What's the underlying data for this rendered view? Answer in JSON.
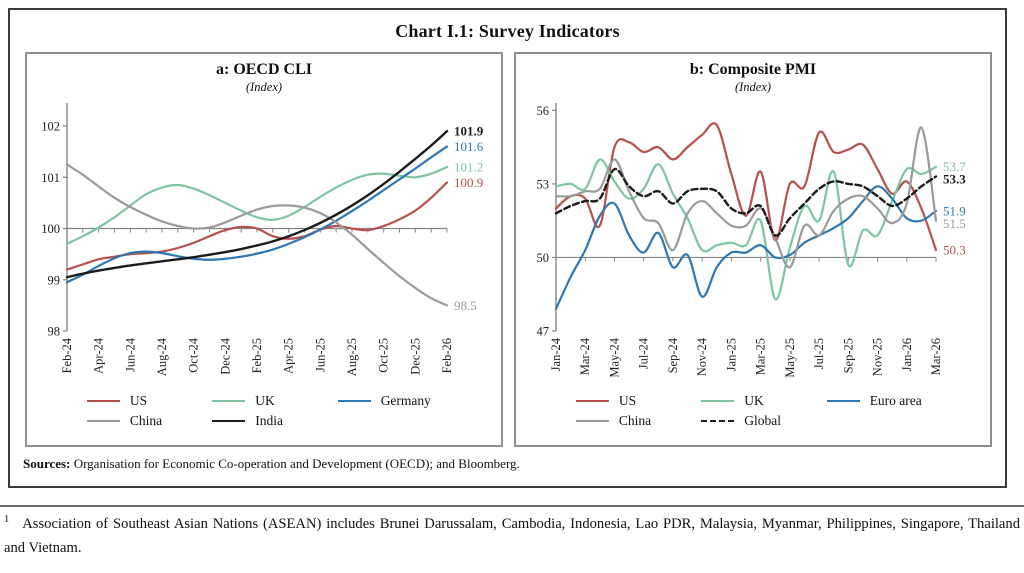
{
  "document": {
    "title": "Chart I.1: Survey Indicators",
    "sources": {
      "label": "Sources:",
      "text": "Organisation for Economic Co-operation and Development (OECD); and Bloomberg."
    },
    "footnote": {
      "marker": "1",
      "text": "Association of Southeast Asian Nations (ASEAN) includes Brunei Darussalam, Cambodia, Indonesia, Lao PDR, Malaysia, Myanmar, Philippines, Singapore, Thailand and Vietnam."
    }
  },
  "style": {
    "axis_color": "#858585",
    "tick_text_color": "#222222"
  },
  "chart_data": [
    {
      "id": "oecd-cli",
      "type": "line",
      "title": "a: OECD CLI",
      "subtitle": "(Index)",
      "legend_position": "bottom",
      "grid": false,
      "x_label_every": 2,
      "baseline": 100,
      "baseline_tick_every": 1,
      "ylim": [
        98,
        102.45
      ],
      "yticks": [
        98,
        99,
        100,
        101,
        102
      ],
      "x": [
        "Feb-24",
        "Mar-24",
        "Apr-24",
        "May-24",
        "Jun-24",
        "Jul-24",
        "Aug-24",
        "Sep-24",
        "Oct-24",
        "Nov-24",
        "Dec-24",
        "Jan-25",
        "Feb-25",
        "Mar-25",
        "Apr-25",
        "May-25",
        "Jun-25",
        "Jul-25",
        "Aug-25",
        "Sep-25",
        "Oct-25",
        "Nov-25",
        "Dec-25",
        "Jan-26",
        "Feb-26"
      ],
      "series": [
        {
          "name": "US",
          "color": "#b7504a",
          "dash": false,
          "emphasis": false,
          "end_label": "100.9",
          "values": [
            99.2,
            99.3,
            99.4,
            99.45,
            99.5,
            99.52,
            99.55,
            99.62,
            99.72,
            99.85,
            99.97,
            100.03,
            100.0,
            99.85,
            99.8,
            99.85,
            99.98,
            100.05,
            100.0,
            99.97,
            100.05,
            100.18,
            100.35,
            100.6,
            100.9
          ]
        },
        {
          "name": "UK",
          "color": "#7dc5a2",
          "dash": false,
          "emphasis": false,
          "end_label": "101.2",
          "values": [
            99.7,
            99.85,
            100.02,
            100.22,
            100.45,
            100.67,
            100.8,
            100.85,
            100.78,
            100.65,
            100.5,
            100.35,
            100.22,
            100.17,
            100.25,
            100.42,
            100.62,
            100.8,
            100.95,
            101.05,
            101.07,
            101.03,
            101.0,
            101.07,
            101.2
          ]
        },
        {
          "name": "Germany",
          "color": "#2e77b5",
          "dash": false,
          "emphasis": false,
          "end_label": "101.6",
          "values": [
            98.95,
            99.1,
            99.27,
            99.42,
            99.52,
            99.55,
            99.52,
            99.46,
            99.41,
            99.39,
            99.41,
            99.45,
            99.51,
            99.59,
            99.7,
            99.83,
            99.98,
            100.15,
            100.34,
            100.54,
            100.75,
            100.96,
            101.17,
            101.39,
            101.6
          ]
        },
        {
          "name": "China",
          "color": "#9a9a9a",
          "dash": false,
          "emphasis": false,
          "end_label": "98.5",
          "values": [
            101.25,
            101.05,
            100.82,
            100.6,
            100.42,
            100.27,
            100.14,
            100.05,
            100.0,
            100.02,
            100.12,
            100.25,
            100.37,
            100.44,
            100.45,
            100.41,
            100.3,
            100.12,
            99.88,
            99.6,
            99.33,
            99.07,
            98.84,
            98.64,
            98.5
          ]
        },
        {
          "name": "India",
          "color": "#1b1b1b",
          "dash": false,
          "emphasis": true,
          "end_label": "101.9",
          "values": [
            99.05,
            99.12,
            99.18,
            99.23,
            99.28,
            99.32,
            99.36,
            99.4,
            99.44,
            99.49,
            99.54,
            99.6,
            99.67,
            99.75,
            99.85,
            99.97,
            100.11,
            100.27,
            100.45,
            100.65,
            100.87,
            101.11,
            101.36,
            101.62,
            101.9
          ]
        }
      ]
    },
    {
      "id": "composite-pmi",
      "type": "line",
      "title": "b: Composite PMI",
      "subtitle": "(Index)",
      "legend_position": "bottom",
      "grid": false,
      "x_label_every": 2,
      "baseline": 50,
      "baseline_tick_every": 2,
      "ylim": [
        47,
        56.3
      ],
      "yticks": [
        47,
        50,
        53,
        56
      ],
      "x": [
        "Jan-24",
        "Feb-24",
        "Mar-24",
        "Apr-24",
        "May-24",
        "Jun-24",
        "Jul-24",
        "Aug-24",
        "Sep-24",
        "Oct-24",
        "Nov-24",
        "Dec-24",
        "Jan-25",
        "Feb-25",
        "Mar-25",
        "Apr-25",
        "May-25",
        "Jun-25",
        "Jul-25",
        "Aug-25",
        "Sep-25",
        "Oct-25",
        "Nov-25",
        "Dec-25",
        "Jan-26",
        "Feb-26",
        "Mar-26"
      ],
      "series": [
        {
          "name": "US",
          "color": "#b7504a",
          "dash": false,
          "emphasis": false,
          "end_label": "50.3",
          "values": [
            52.0,
            52.5,
            52.4,
            51.3,
            54.5,
            54.7,
            54.3,
            54.5,
            54.0,
            54.5,
            55.0,
            55.4,
            53.4,
            51.7,
            53.5,
            50.7,
            53.0,
            52.9,
            55.1,
            54.3,
            54.4,
            54.6,
            53.6,
            52.6,
            53.1,
            52.0,
            50.3
          ]
        },
        {
          "name": "UK",
          "color": "#7dc5a2",
          "dash": false,
          "emphasis": false,
          "end_label": "53.7",
          "values": [
            52.9,
            53.0,
            52.8,
            54.0,
            53.1,
            52.4,
            52.8,
            53.8,
            52.6,
            51.6,
            50.3,
            50.5,
            50.6,
            50.5,
            51.5,
            48.3,
            50.4,
            52.1,
            51.5,
            53.5,
            49.7,
            51.1,
            50.9,
            52.3,
            53.6,
            53.4,
            53.7
          ]
        },
        {
          "name": "Euro area",
          "color": "#2e77b5",
          "dash": false,
          "emphasis": false,
          "end_label": "51.9",
          "values": [
            47.9,
            49.2,
            50.3,
            51.7,
            52.2,
            50.9,
            50.2,
            51.0,
            49.6,
            50.1,
            48.4,
            49.6,
            50.2,
            50.2,
            50.5,
            50.0,
            50.1,
            50.6,
            50.9,
            51.2,
            51.6,
            52.3,
            52.9,
            52.4,
            51.6,
            51.5,
            51.9
          ]
        },
        {
          "name": "China",
          "color": "#9a9a9a",
          "dash": false,
          "emphasis": false,
          "end_label": "51.5",
          "values": [
            52.5,
            52.5,
            52.7,
            52.8,
            54.0,
            52.7,
            51.6,
            51.4,
            50.3,
            51.8,
            52.3,
            51.8,
            51.3,
            51.3,
            52.0,
            50.8,
            49.6,
            51.3,
            50.9,
            51.9,
            52.4,
            52.5,
            52.0,
            51.4,
            52.2,
            55.3,
            51.5
          ]
        },
        {
          "name": "Global",
          "color": "#1b1b1b",
          "dash": true,
          "emphasis": true,
          "end_label": "53.3",
          "values": [
            51.8,
            52.1,
            52.3,
            52.4,
            53.6,
            52.9,
            52.5,
            52.7,
            52.2,
            52.7,
            52.8,
            52.7,
            52.0,
            51.8,
            52.1,
            50.9,
            51.6,
            52.2,
            52.8,
            53.1,
            53.0,
            52.9,
            52.5,
            52.1,
            52.4,
            52.9,
            53.3
          ]
        }
      ]
    }
  ]
}
